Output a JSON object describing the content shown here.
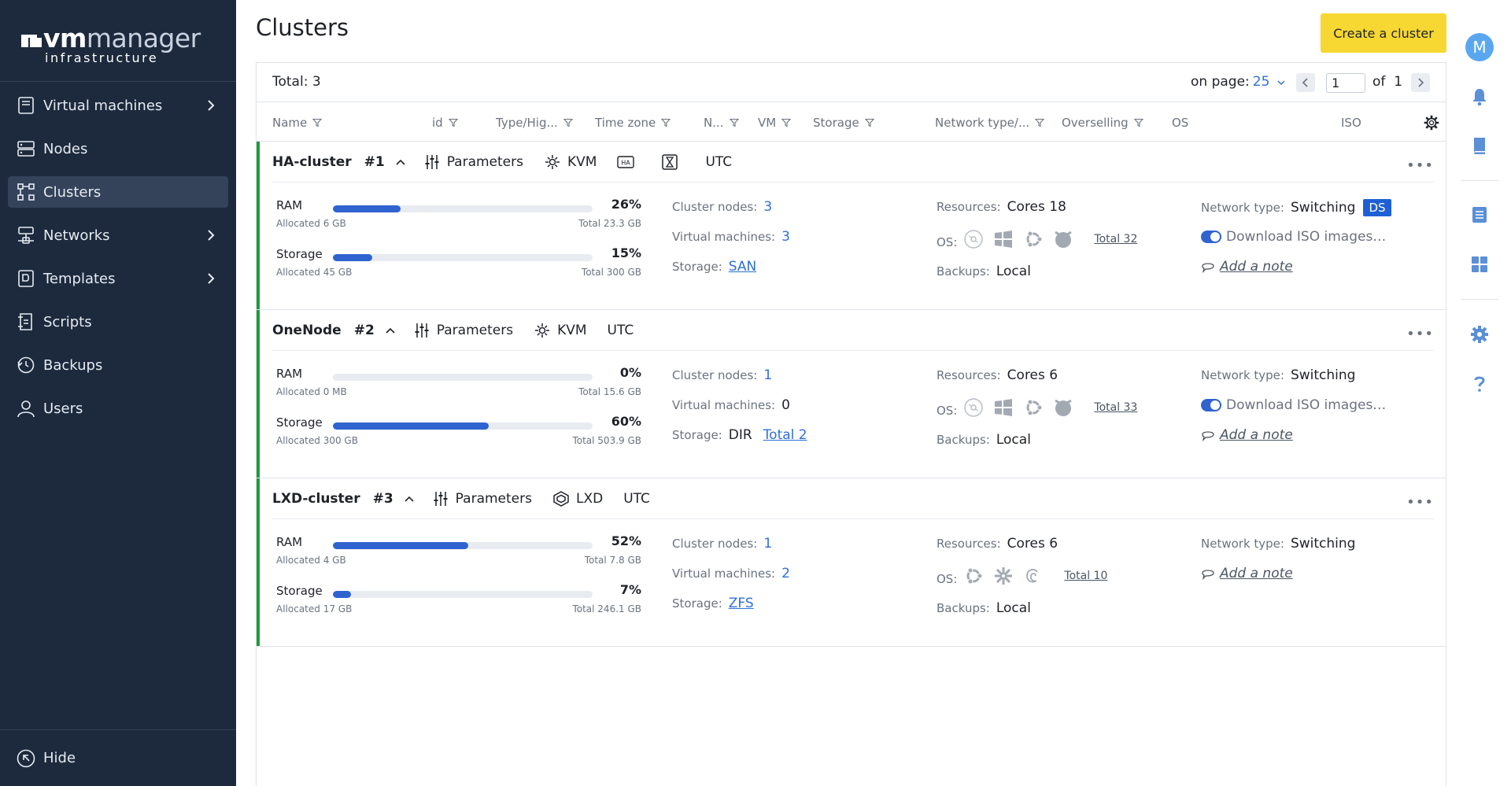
{
  "logo": {
    "brand_vm": "vm",
    "brand_manager": "manager",
    "brand_sub": "infrastructure"
  },
  "sidebar": {
    "items": [
      {
        "label": "Virtual machines",
        "icon": "monitor-icon",
        "has_children": true
      },
      {
        "label": "Nodes",
        "icon": "server-icon",
        "has_children": false
      },
      {
        "label": "Clusters",
        "icon": "cluster-icon",
        "has_children": false,
        "active": true
      },
      {
        "label": "Networks",
        "icon": "network-icon",
        "has_children": true
      },
      {
        "label": "Templates",
        "icon": "template-icon",
        "has_children": true
      },
      {
        "label": "Scripts",
        "icon": "script-icon",
        "has_children": false
      },
      {
        "label": "Backups",
        "icon": "backup-icon",
        "has_children": false
      },
      {
        "label": "Users",
        "icon": "user-icon",
        "has_children": false
      }
    ],
    "hide_label": "Hide"
  },
  "header": {
    "title": "Clusters",
    "create_label": "Create a cluster"
  },
  "rail": {
    "avatar_letter": "M"
  },
  "toolbar": {
    "total": "Total: 3",
    "on_page_label": "on page:",
    "on_page_value": "25",
    "page_value": "1",
    "of_label": "of",
    "page_count": "1"
  },
  "columns": [
    "Name",
    "id",
    "Type/Hig...",
    "Time zone",
    "N...",
    "VM",
    "Storage",
    "Network type/...",
    "Overselling",
    "OS",
    "ISO"
  ],
  "clusters": [
    {
      "name": "HA-cluster",
      "id": "#1",
      "params_label": "Parameters",
      "virt": "KVM",
      "ha_badge": "HA",
      "tz": "UTC",
      "ram": {
        "label": "RAM",
        "pct_text": "26%",
        "pct": 26,
        "allocated": "Allocated 6 GB",
        "total": "Total 23.3 GB"
      },
      "storage": {
        "label": "Storage",
        "pct_text": "15%",
        "pct": 15,
        "allocated": "Allocated 45 GB",
        "total": "Total 300 GB"
      },
      "nodes_label": "Cluster nodes:",
      "nodes": "3",
      "vms_label": "Virtual machines:",
      "vms": "3",
      "storage_label": "Storage:",
      "storage_type": "SAN",
      "storage_total": "",
      "resources_label": "Resources:",
      "resources": "Cores 18",
      "os_label": "OS:",
      "os_total": "Total 32",
      "backups_label": "Backups:",
      "backups": "Local",
      "net_label": "Network type:",
      "net": "Switching",
      "ds_badge": "DS",
      "iso_text": "Download ISO images…",
      "note": "Add a note"
    },
    {
      "name": "OneNode",
      "id": "#2",
      "params_label": "Parameters",
      "virt": "KVM",
      "ha_badge": "",
      "tz": "UTC",
      "ram": {
        "label": "RAM",
        "pct_text": "0%",
        "pct": 0,
        "allocated": "Allocated 0 MB",
        "total": "Total 15.6 GB"
      },
      "storage": {
        "label": "Storage",
        "pct_text": "60%",
        "pct": 60,
        "allocated": "Allocated 300 GB",
        "total": "Total 503.9 GB"
      },
      "nodes_label": "Cluster nodes:",
      "nodes": "1",
      "vms_label": "Virtual machines:",
      "vms": "0",
      "storage_label": "Storage:",
      "storage_type": "DIR",
      "storage_total": "Total 2",
      "resources_label": "Resources:",
      "resources": "Cores 6",
      "os_label": "OS:",
      "os_total": "Total 33",
      "backups_label": "Backups:",
      "backups": "Local",
      "net_label": "Network type:",
      "net": "Switching",
      "ds_badge": "",
      "iso_text": "Download ISO images…",
      "note": "Add a note"
    },
    {
      "name": "LXD-cluster",
      "id": "#3",
      "params_label": "Parameters",
      "virt": "LXD",
      "ha_badge": "",
      "tz": "UTC",
      "ram": {
        "label": "RAM",
        "pct_text": "52%",
        "pct": 52,
        "allocated": "Allocated 4 GB",
        "total": "Total 7.8 GB"
      },
      "storage": {
        "label": "Storage",
        "pct_text": "7%",
        "pct": 7,
        "allocated": "Allocated 17 GB",
        "total": "Total 246.1 GB"
      },
      "nodes_label": "Cluster nodes:",
      "nodes": "1",
      "vms_label": "Virtual machines:",
      "vms": "2",
      "storage_label": "Storage:",
      "storage_type": "ZFS",
      "storage_total": "",
      "resources_label": "Resources:",
      "resources": "Cores 6",
      "os_label": "OS:",
      "os_total": "Total 10",
      "backups_label": "Backups:",
      "backups": "Local",
      "net_label": "Network type:",
      "net": "Switching",
      "ds_badge": "",
      "iso_text": "",
      "note": "Add a note"
    }
  ],
  "colors": {
    "sidebar_bg": "#1d2a3d",
    "accent_yellow": "#f7d731",
    "link_blue": "#2f6fd6",
    "bar_blue": "#2f63cf",
    "status_green": "#1f9b3a"
  }
}
